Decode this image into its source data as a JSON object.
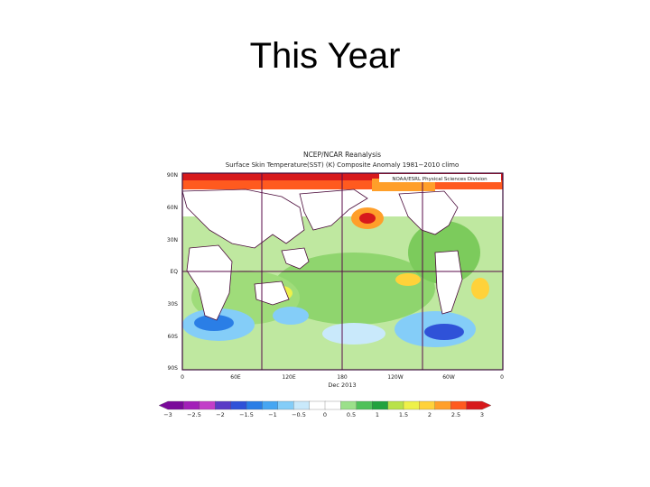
{
  "slide": {
    "title": "This Year"
  },
  "figure": {
    "title_line1": "NCEP/NCAR Reanalysis",
    "title_line2": "Surface Skin Temperature(SST) (K) Composite Anomaly 1981−2010 climo",
    "credit": "NOAA/ESRL Physical Sciences Division",
    "date_label": "Dec 2013",
    "lat_labels": [
      "90N",
      "60N",
      "30N",
      "EQ",
      "30S",
      "60S",
      "90S"
    ],
    "lon_labels": [
      "0",
      "60E",
      "120E",
      "180",
      "120W",
      "60W",
      "0"
    ],
    "colorbar_labels": [
      "−3",
      "−2.5",
      "−2",
      "−1.5",
      "−1",
      "−0.5",
      "0",
      "0.5",
      "1",
      "1.5",
      "2",
      "2.5",
      "3"
    ],
    "colorbar_colors": [
      "#7a0a9a",
      "#a21fb8",
      "#c23ec8",
      "#5a3bc6",
      "#2f52d8",
      "#2a7ee6",
      "#46a6f2",
      "#84cdf8",
      "#c9e9fb",
      "#ffffff",
      "#ffffff",
      "#9be08a",
      "#4fc15a",
      "#22a23e",
      "#b9e24a",
      "#eef14a",
      "#ffd23a",
      "#ff9f2a",
      "#ff5a1f",
      "#d7191c"
    ]
  }
}
